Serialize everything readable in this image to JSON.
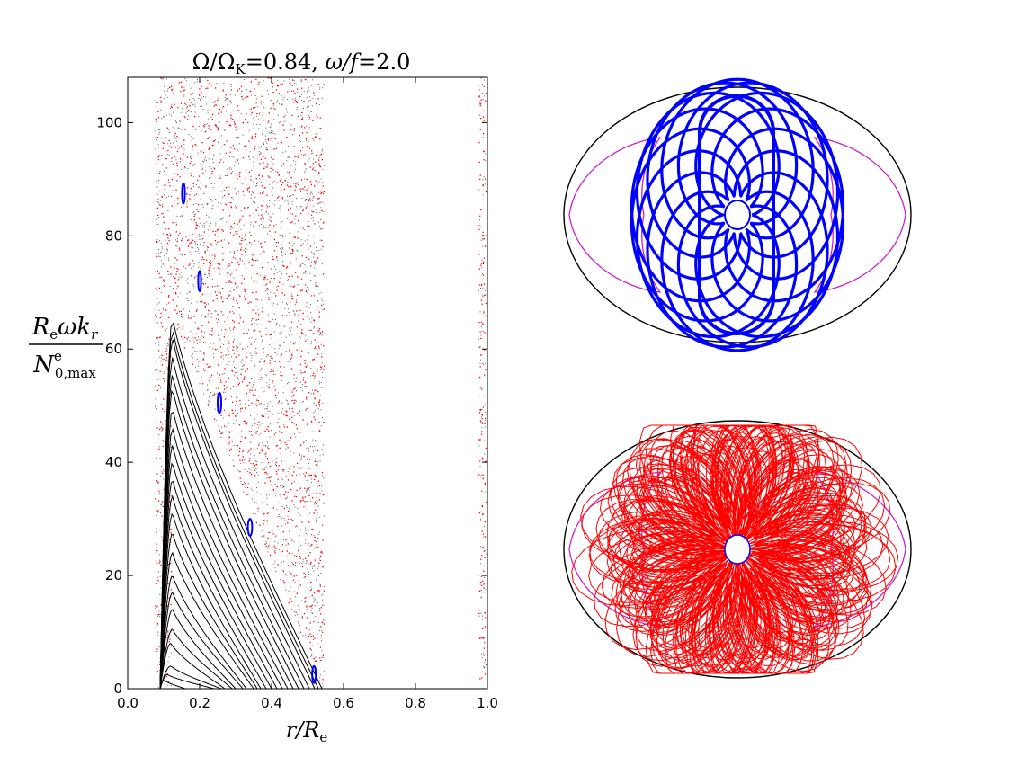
{
  "chart_data": [
    {
      "type": "scatter",
      "title": "Ω/Ω_K = 0.84, ω/f = 2.0",
      "title_parts": {
        "omega": "Ω/Ω",
        "omega_sub": "K",
        "omega_val": "=0.84, ",
        "wf": "ω/f",
        "wf_val": "=2.0"
      },
      "xlabel": "r/R_e",
      "xlabel_parts": {
        "r": "r/R",
        "sub": "e"
      },
      "ylabel": "R_e ω k_r / N^e_{0,max}",
      "ylabel_parts": {
        "num_R": "R",
        "num_R_sub": "e",
        "num_rest": "ωk",
        "num_k_sub": "r",
        "den_N": "N",
        "den_sup": "e",
        "den_sub": "0,max"
      },
      "xlim": [
        0.0,
        1.0
      ],
      "ylim": [
        0,
        108
      ],
      "xticks": [
        "0.0",
        "0.2",
        "0.4",
        "0.6",
        "0.8",
        "1.0"
      ],
      "yticks": [
        "0",
        "20",
        "40",
        "60",
        "80",
        "100"
      ],
      "grid": false,
      "series": [
        {
          "color": "#000000",
          "invariant_curves": [
            {
              "x_start": 0.09,
              "x_end": 0.16,
              "x_peak": 0.1,
              "peak": 1.5,
              "y_end": 0
            },
            {
              "x_start": 0.09,
              "x_end": 0.24,
              "x_peak": 0.11,
              "peak": 2.5,
              "y_end": 0
            },
            {
              "x_start": 0.09,
              "x_end": 0.26,
              "x_peak": 0.12,
              "peak": 4.0,
              "y_end": 0
            },
            {
              "x_start": 0.09,
              "x_end": 0.27,
              "x_peak": 0.12,
              "peak": 8.0,
              "y_end": 0
            },
            {
              "x_start": 0.09,
              "x_end": 0.29,
              "x_peak": 0.125,
              "peak": 10.5,
              "y_end": 0
            },
            {
              "x_start": 0.09,
              "x_end": 0.3,
              "x_peak": 0.125,
              "peak": 14.0,
              "y_end": 0
            },
            {
              "x_start": 0.09,
              "x_end": 0.32,
              "x_peak": 0.125,
              "peak": 17.0,
              "y_end": 0
            },
            {
              "x_start": 0.09,
              "x_end": 0.33,
              "x_peak": 0.125,
              "peak": 20.0,
              "y_end": 0
            },
            {
              "x_start": 0.09,
              "x_end": 0.35,
              "x_peak": 0.125,
              "peak": 24.0,
              "y_end": 0
            },
            {
              "x_start": 0.09,
              "x_end": 0.36,
              "x_peak": 0.125,
              "peak": 27.5,
              "y_end": 0
            },
            {
              "x_start": 0.09,
              "x_end": 0.37,
              "x_peak": 0.125,
              "peak": 31.0,
              "y_end": 0
            },
            {
              "x_start": 0.09,
              "x_end": 0.385,
              "x_peak": 0.125,
              "peak": 34.0,
              "y_end": 0
            },
            {
              "x_start": 0.09,
              "x_end": 0.4,
              "x_peak": 0.125,
              "peak": 37.0,
              "y_end": 0
            },
            {
              "x_start": 0.09,
              "x_end": 0.415,
              "x_peak": 0.125,
              "peak": 40.0,
              "y_end": 0
            },
            {
              "x_start": 0.09,
              "x_end": 0.43,
              "x_peak": 0.125,
              "peak": 43.0,
              "y_end": 0
            },
            {
              "x_start": 0.09,
              "x_end": 0.445,
              "x_peak": 0.125,
              "peak": 46.0,
              "y_end": 0
            },
            {
              "x_start": 0.09,
              "x_end": 0.46,
              "x_peak": 0.125,
              "peak": 49.5,
              "y_end": 0
            },
            {
              "x_start": 0.09,
              "x_end": 0.475,
              "x_peak": 0.125,
              "peak": 53.0,
              "y_end": 0
            },
            {
              "x_start": 0.09,
              "x_end": 0.49,
              "x_peak": 0.125,
              "peak": 55.5,
              "y_end": 0
            },
            {
              "x_start": 0.09,
              "x_end": 0.505,
              "x_peak": 0.125,
              "peak": 58.5,
              "y_end": 0
            },
            {
              "x_start": 0.09,
              "x_end": 0.52,
              "x_peak": 0.125,
              "peak": 62.0,
              "y_end": 0
            },
            {
              "x_start": 0.09,
              "x_end": 0.53,
              "x_peak": 0.125,
              "peak": 63.5,
              "y_end": 0
            },
            {
              "x_start": 0.09,
              "x_end": 0.54,
              "x_peak": 0.125,
              "peak": 65.5,
              "y_end": 0
            }
          ]
        },
        {
          "color": "#0000ff",
          "islands": [
            {
              "x": 0.155,
              "y": 87.5,
              "rx": 0.004,
              "ry": 1.8
            },
            {
              "x": 0.2,
              "y": 72.0,
              "rx": 0.004,
              "ry": 1.8
            },
            {
              "x": 0.255,
              "y": 50.5,
              "rx": 0.005,
              "ry": 1.8
            },
            {
              "x": 0.34,
              "y": 28.5,
              "rx": 0.006,
              "ry": 1.5
            },
            {
              "x": 0.518,
              "y": 2.5,
              "rx": 0.005,
              "ry": 1.5
            }
          ]
        },
        {
          "color": "#ff0000",
          "chaotic_region": {
            "x": [
              0.075,
              0.545
            ],
            "y": [
              0,
              108
            ],
            "extra_band_x": [
              0.975,
              0.995
            ]
          }
        }
      ]
    },
    {
      "type": "other",
      "description_colors": {
        "boundary": "#000000",
        "caustic": "#cc00cc",
        "ray": "#0000ff"
      }
    },
    {
      "type": "other",
      "description_colors": {
        "boundary": "#000000",
        "caustic": "#cc00cc",
        "ray": "#ff0000"
      }
    }
  ]
}
